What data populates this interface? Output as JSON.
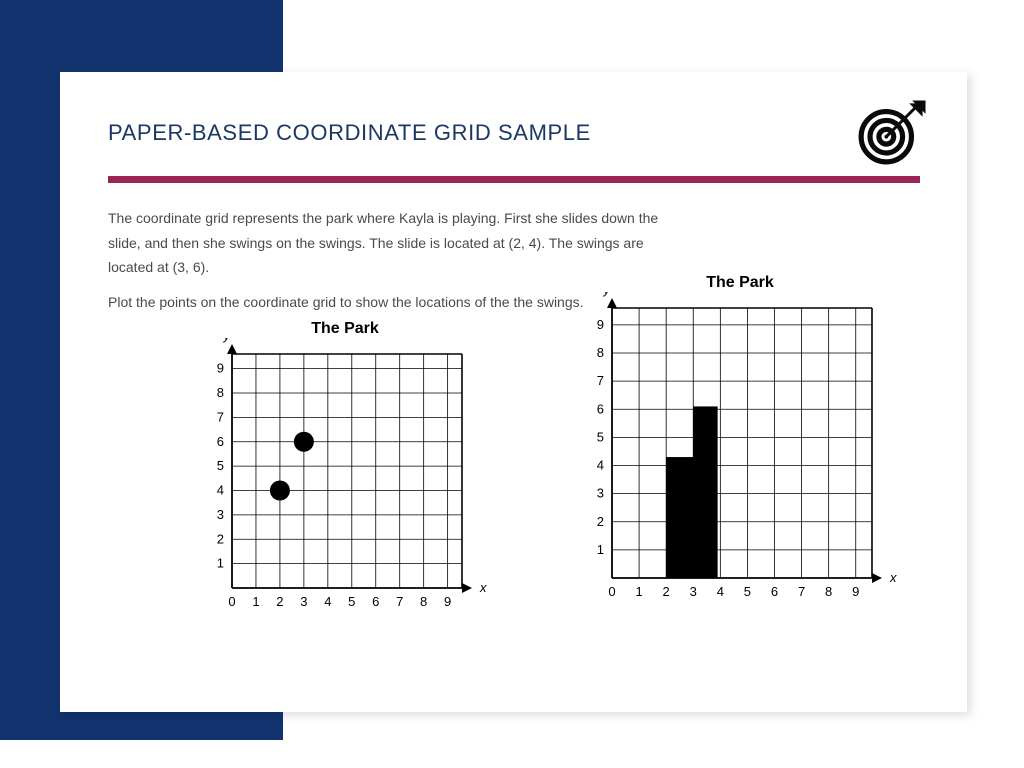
{
  "colors": {
    "navy": "#12336e",
    "title_navy": "#1b3764",
    "magenta": "#9b2457",
    "body_text": "#4a4a4a",
    "black": "#000000",
    "grid_line": "#000000",
    "white": "#ffffff"
  },
  "title": "PAPER-BASED COORDINATE GRID SAMPLE",
  "title_fontsize": 22,
  "paragraph1": "The coordinate grid represents the park where Kayla is playing. First she slides down the slide, and then she swings on the swings. The slide is located at (2, 4). The swings are located at (3, 6).",
  "paragraph2": "Plot the points on the coordinate grid to show the locations of the the swings.",
  "body_fontsize": 14,
  "icon_name": "target-arrow-icon",
  "chart_left": {
    "title": "The Park",
    "title_fontsize": 16,
    "type": "scatter",
    "x_axis_label": "x",
    "y_axis_label": "y",
    "xlim": [
      0,
      9.6
    ],
    "ylim": [
      0,
      9.6
    ],
    "xticks": [
      0,
      1,
      2,
      3,
      4,
      5,
      6,
      7,
      8,
      9
    ],
    "yticks": [
      1,
      2,
      3,
      4,
      5,
      6,
      7,
      8,
      9
    ],
    "grid_step": 1,
    "grid_color": "#000000",
    "axis_arrow": true,
    "points": [
      {
        "x": 2,
        "y": 4,
        "r": 10,
        "color": "#000000"
      },
      {
        "x": 3,
        "y": 6,
        "r": 10,
        "color": "#000000"
      }
    ],
    "tick_fontsize": 13
  },
  "chart_right": {
    "title": "The Park",
    "title_fontsize": 16,
    "type": "bar",
    "x_axis_label": "x",
    "y_axis_label": "y",
    "xlim": [
      0,
      9.6
    ],
    "ylim": [
      0,
      9.6
    ],
    "xticks": [
      0,
      1,
      2,
      3,
      4,
      5,
      6,
      7,
      8,
      9
    ],
    "yticks": [
      1,
      2,
      3,
      4,
      5,
      6,
      7,
      8,
      9
    ],
    "grid_step": 1,
    "grid_color": "#000000",
    "axis_arrow": true,
    "bars": [
      {
        "x_start": 2,
        "x_end": 3,
        "height": 4.3,
        "color": "#000000"
      },
      {
        "x_start": 3,
        "x_end": 3.9,
        "height": 6.1,
        "color": "#000000"
      }
    ],
    "tick_fontsize": 13
  }
}
